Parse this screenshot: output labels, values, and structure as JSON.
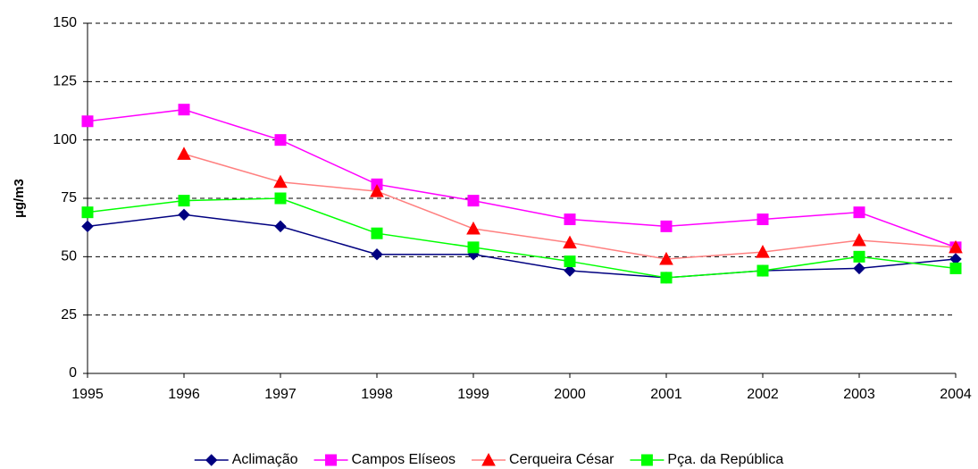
{
  "chart_data": {
    "type": "line",
    "y_label": "µg/m3",
    "categories": [
      "1995",
      "1996",
      "1997",
      "1998",
      "1999",
      "2000",
      "2001",
      "2002",
      "2003",
      "2004"
    ],
    "ylim": [
      0,
      150
    ],
    "yticks": [
      0,
      25,
      50,
      75,
      100,
      125,
      150
    ],
    "grid": true,
    "legend": "bottom",
    "series": [
      {
        "name": "Aclimação",
        "color": "#000080",
        "marker_color": "#000080",
        "marker": "diamond",
        "values": [
          63,
          68,
          63,
          51,
          51,
          44,
          41,
          44,
          45,
          49
        ]
      },
      {
        "name": "Campos Elíseos",
        "color": "#ff00ff",
        "marker_color": "#ff00ff",
        "marker": "square",
        "values": [
          108,
          113,
          100,
          81,
          74,
          66,
          63,
          66,
          69,
          54
        ]
      },
      {
        "name": "Cerqueira César",
        "color": "#ff8080",
        "marker_color": "#ff0000",
        "marker": "triangle",
        "values": [
          null,
          94,
          82,
          78,
          62,
          56,
          49,
          52,
          57,
          54
        ]
      },
      {
        "name": "Pça. da República",
        "color": "#00ff00",
        "marker_color": "#00ff00",
        "marker": "square",
        "values": [
          69,
          74,
          75,
          60,
          54,
          48,
          41,
          44,
          50,
          45
        ]
      }
    ]
  }
}
